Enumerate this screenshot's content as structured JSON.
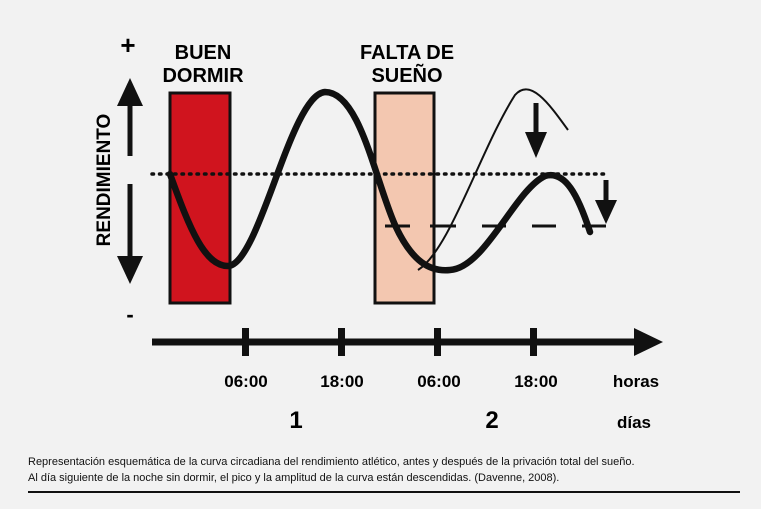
{
  "labels": {
    "plus": "+",
    "minus": "-",
    "y_axis": "RENDIMIENTO",
    "good_sleep_line1": "BUEN",
    "good_sleep_line2": "DORMIR",
    "sleep_dep_line1": "FALTA DE",
    "sleep_dep_line2": "SUEÑO",
    "hours_unit": "horas",
    "days_unit": "días"
  },
  "time_ticks": [
    "06:00",
    "18:00",
    "06:00",
    "18:00"
  ],
  "day_labels": [
    "1",
    "2"
  ],
  "colors": {
    "good_sleep_fill": "#d0141e",
    "sleep_dep_fill": "#f3c7b0",
    "ink": "#111111",
    "background": "#f2f2f2"
  },
  "caption": {
    "line1": "Representación esquemática de la curva circadiana del rendimiento atlético, antes y después de la privación total del sueño.",
    "line2": "Al día siguiente de la noche sin dormir, el pico y la amplitud de la curva están descendidas. (Davenne, 2008)."
  }
}
